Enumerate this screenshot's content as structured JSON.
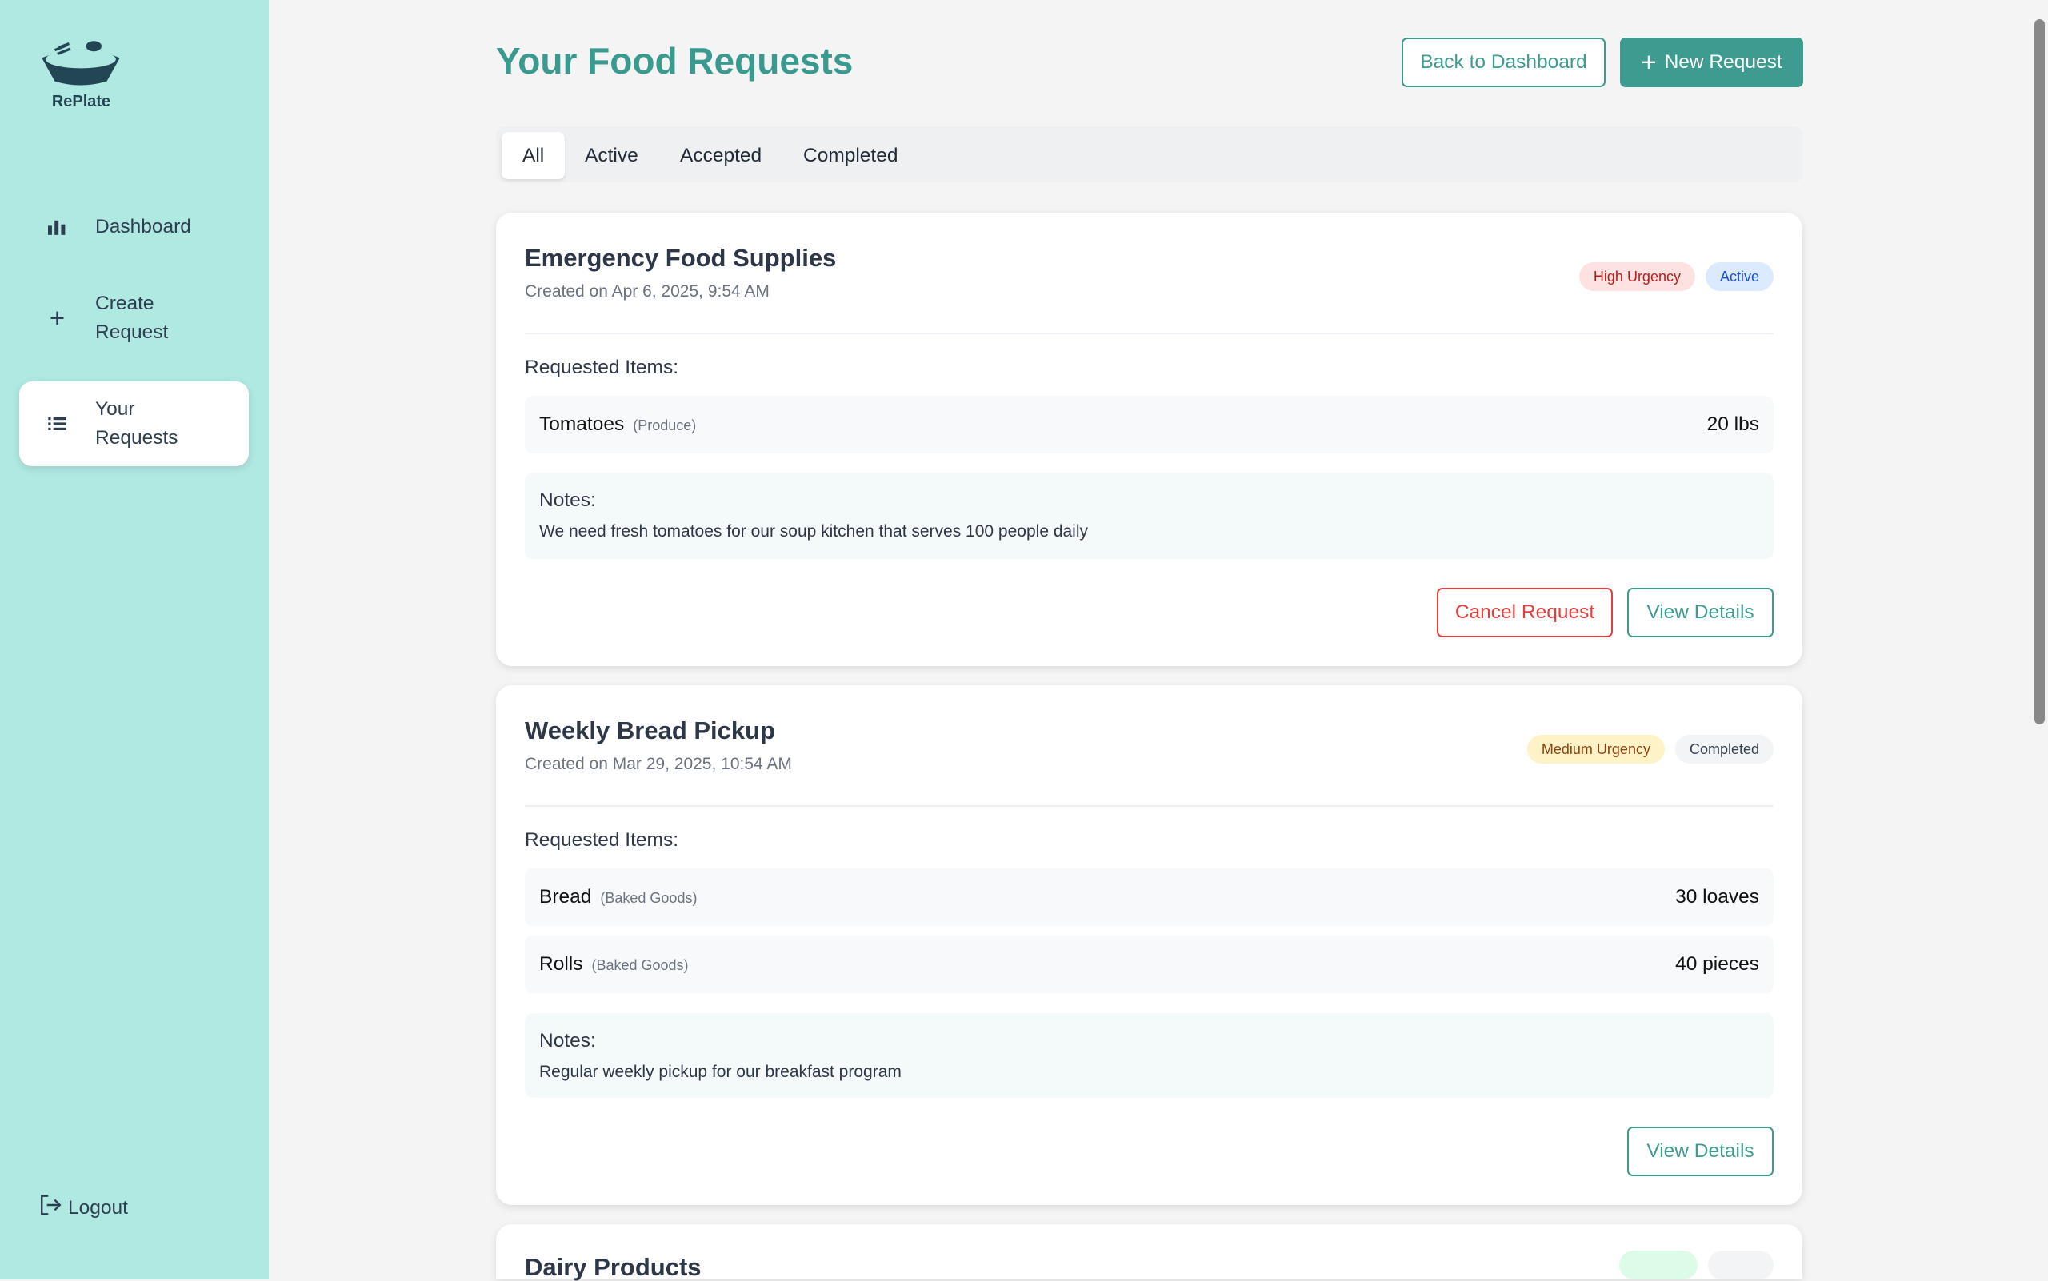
{
  "app": {
    "name": "RePlate"
  },
  "sidebar": {
    "items": [
      {
        "label": "Dashboard",
        "icon": "bar-chart-icon"
      },
      {
        "label": "Create Request",
        "icon": "plus-icon"
      },
      {
        "label": "Your Requests",
        "icon": "list-icon",
        "active": true
      }
    ],
    "logout": "Logout"
  },
  "header": {
    "title": "Your Food Requests",
    "back": "Back to Dashboard",
    "new": "New Request"
  },
  "tabs": [
    "All",
    "Active",
    "Accepted",
    "Completed"
  ],
  "labels": {
    "items": "Requested Items:",
    "notes": "Notes:",
    "cancel": "Cancel Request",
    "view": "View Details"
  },
  "requests": [
    {
      "title": "Emergency Food Supplies",
      "date": "Created on Apr 6, 2025, 9:54 AM",
      "urgency": "High Urgency",
      "status": "Active",
      "items": [
        {
          "name": "Tomatoes",
          "category": "(Produce)",
          "qty": "20 lbs"
        }
      ],
      "notes": "We need fresh tomatoes for our soup kitchen that serves 100 people daily"
    },
    {
      "title": "Weekly Bread Pickup",
      "date": "Created on Mar 29, 2025, 10:54 AM",
      "urgency": "Medium Urgency",
      "status": "Completed",
      "items": [
        {
          "name": "Bread",
          "category": "(Baked Goods)",
          "qty": "30 loaves"
        },
        {
          "name": "Rolls",
          "category": "(Baked Goods)",
          "qty": "40 pieces"
        }
      ],
      "notes": "Regular weekly pickup for our breakfast program"
    },
    {
      "title": "Dairy Products"
    }
  ],
  "colors": {
    "accent": "#3d9b90",
    "sidebar": "#b0e8e2",
    "danger": "#e53e3e"
  }
}
